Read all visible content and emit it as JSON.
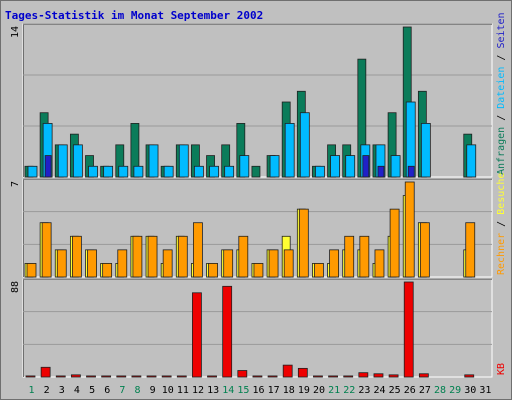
{
  "chart_data": {
    "type": "bar",
    "title": "Tages-Statistik im Monat September 2002",
    "categories": [
      "1",
      "2",
      "3",
      "4",
      "5",
      "6",
      "7",
      "8",
      "9",
      "10",
      "11",
      "12",
      "13",
      "14",
      "15",
      "16",
      "17",
      "18",
      "19",
      "20",
      "21",
      "22",
      "23",
      "24",
      "25",
      "26",
      "27",
      "28",
      "29",
      "30",
      "31"
    ],
    "weekend_days": [
      "1",
      "7",
      "8",
      "14",
      "15",
      "21",
      "22",
      "28",
      "29"
    ],
    "colors": {
      "title": "#0000cc",
      "anfragen": "#0b7c5a",
      "dateien": "#00bbff",
      "seiten": "#2020c8",
      "besuche": "#ffff33",
      "rechner": "#ff9a00",
      "kb": "#ee0000",
      "weekday_tick": "#000000",
      "weekend_tick": "#00804f",
      "grid": "#9a9a9a",
      "panel": "#c0c0c0"
    },
    "panels": [
      {
        "y_max_label": "14",
        "y_max": 14,
        "right_labels": [
          {
            "text": "Anfragen",
            "color": "#0b7c5a"
          },
          {
            "text": " / ",
            "color": "#000000"
          },
          {
            "text": "Dateien",
            "color": "#00bbff"
          },
          {
            "text": " / ",
            "color": "#000000"
          },
          {
            "text": "Seiten",
            "color": "#2020c8"
          }
        ],
        "series": [
          {
            "name": "Anfragen",
            "values": [
              1,
              6,
              3,
              4,
              2,
              1,
              3,
              5,
              3,
              1,
              3,
              3,
              2,
              3,
              5,
              1,
              2,
              7,
              8,
              1,
              3,
              3,
              11,
              3,
              6,
              14,
              8,
              0,
              0,
              4,
              0
            ]
          },
          {
            "name": "Dateien",
            "values": [
              1,
              5,
              3,
              3,
              1,
              1,
              1,
              1,
              3,
              1,
              3,
              1,
              1,
              1,
              2,
              0,
              2,
              5,
              6,
              1,
              2,
              2,
              3,
              3,
              2,
              7,
              5,
              0,
              0,
              3,
              0
            ]
          },
          {
            "name": "Seiten",
            "values": [
              0,
              2,
              0,
              0,
              0,
              0,
              0,
              0,
              0,
              0,
              0,
              0,
              0,
              0,
              0,
              0,
              0,
              0,
              0,
              0,
              0,
              0,
              2,
              1,
              0,
              1,
              0,
              0,
              0,
              0,
              0
            ]
          }
        ]
      },
      {
        "y_max_label": "7",
        "y_max": 7,
        "right_labels": [
          {
            "text": "Rechner",
            "color": "#ff9a00"
          },
          {
            "text": " / ",
            "color": "#000000"
          },
          {
            "text": "Besuche",
            "color": "#ffff33"
          }
        ],
        "series": [
          {
            "name": "Besuche",
            "values": [
              1,
              4,
              2,
              3,
              2,
              1,
              1,
              3,
              3,
              1,
              3,
              1,
              1,
              2,
              2,
              1,
              2,
              3,
              5,
              1,
              1,
              2,
              2,
              1,
              3,
              6,
              4,
              0,
              0,
              2,
              0
            ]
          },
          {
            "name": "Rechner",
            "values": [
              1,
              4,
              2,
              3,
              2,
              1,
              2,
              3,
              3,
              2,
              3,
              4,
              1,
              2,
              3,
              1,
              2,
              2,
              5,
              1,
              2,
              3,
              3,
              2,
              5,
              7,
              4,
              0,
              0,
              4,
              0
            ]
          }
        ]
      },
      {
        "y_max_label": "88",
        "y_max": 88,
        "right_labels": [
          {
            "text": "KB",
            "color": "#ee0000"
          }
        ],
        "series": [
          {
            "name": "KB",
            "values": [
              1,
              9,
              1,
              2,
              1,
              1,
              1,
              1,
              1,
              1,
              1,
              78,
              1,
              84,
              6,
              1,
              1,
              11,
              8,
              1,
              1,
              1,
              4,
              3,
              2,
              88,
              3,
              0,
              0,
              2,
              0
            ]
          }
        ]
      }
    ]
  }
}
